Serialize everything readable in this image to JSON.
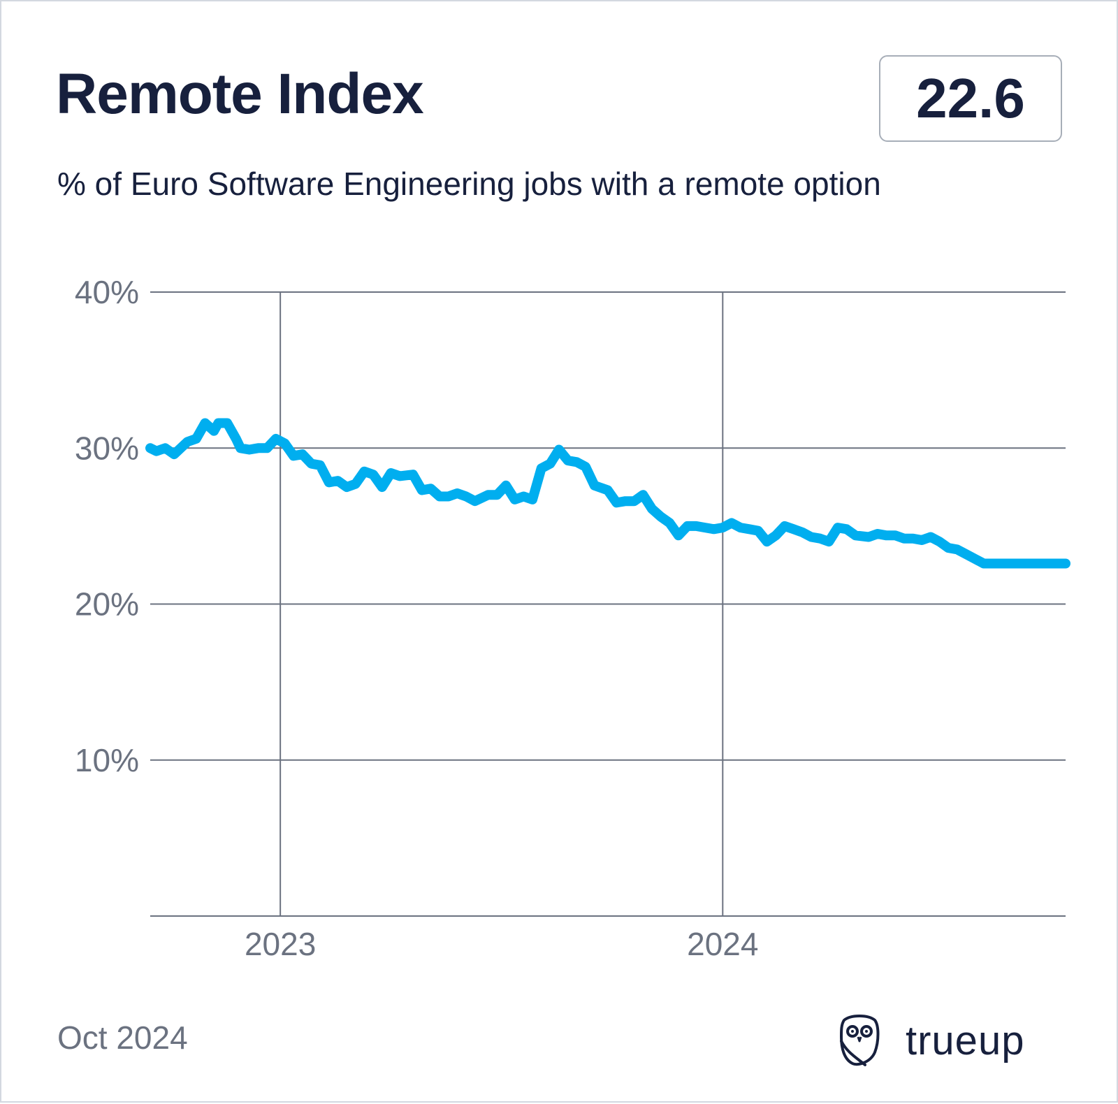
{
  "header": {
    "title": "Remote Index",
    "current_value": "22.6",
    "subtitle": "% of Euro Software Engineering jobs with a remote option"
  },
  "footer": {
    "date": "Oct 2024",
    "brand": "trueup",
    "brand_icon": "owl-icon"
  },
  "colors": {
    "line": "#00aeef",
    "grid": "#6b7280",
    "title": "#17203d",
    "muted": "#6b7280"
  },
  "chart_data": {
    "type": "line",
    "title": "Remote Index",
    "subtitle": "% of Euro Software Engineering jobs with a remote option",
    "xlabel": "",
    "ylabel": "",
    "x_unit": "decimal year",
    "xlim": [
      2022.706,
      2024.775
    ],
    "ylim": [
      0,
      40
    ],
    "y_ticks": [
      {
        "value": 10,
        "label": "10%"
      },
      {
        "value": 20,
        "label": "20%"
      },
      {
        "value": 30,
        "label": "30%"
      },
      {
        "value": 40,
        "label": "40%"
      }
    ],
    "x_ticks": [
      {
        "value": 2023.0,
        "label": "2023"
      },
      {
        "value": 2024.0,
        "label": "2024"
      }
    ],
    "grid": true,
    "legend": "none",
    "series": [
      {
        "name": "Remote Index",
        "x": [
          2022.706,
          2022.72,
          2022.74,
          2022.76,
          2022.79,
          2022.81,
          2022.83,
          2022.85,
          2022.86,
          2022.88,
          2022.9,
          2022.91,
          2022.93,
          2022.95,
          2022.97,
          2022.99,
          2023.01,
          2023.03,
          2023.05,
          2023.07,
          2023.09,
          2023.11,
          2023.13,
          2023.15,
          2023.17,
          2023.19,
          2023.21,
          2023.23,
          2023.25,
          2023.27,
          2023.3,
          2023.32,
          2023.34,
          2023.36,
          2023.38,
          2023.4,
          2023.42,
          2023.44,
          2023.47,
          2023.49,
          2023.51,
          2023.53,
          2023.55,
          2023.57,
          2023.59,
          2023.61,
          2023.63,
          2023.65,
          2023.67,
          2023.69,
          2023.71,
          2023.74,
          2023.76,
          2023.78,
          2023.8,
          2023.82,
          2023.84,
          2023.86,
          2023.88,
          2023.9,
          2023.92,
          2023.94,
          2023.96,
          2023.98,
          2024.0,
          2024.02,
          2024.04,
          2024.06,
          2024.08,
          2024.1,
          2024.12,
          2024.14,
          2024.16,
          2024.18,
          2024.2,
          2024.22,
          2024.24,
          2024.26,
          2024.28,
          2024.3,
          2024.33,
          2024.35,
          2024.37,
          2024.39,
          2024.41,
          2024.43,
          2024.45,
          2024.47,
          2024.49,
          2024.51,
          2024.53,
          2024.55,
          2024.57,
          2024.59,
          2024.61,
          2024.63,
          2024.65,
          2024.67,
          2024.7,
          2024.72,
          2024.74,
          2024.775
        ],
        "values": [
          30.0,
          29.8,
          30.0,
          29.6,
          30.4,
          30.6,
          31.6,
          31.1,
          31.6,
          31.6,
          30.6,
          30.0,
          29.9,
          30.0,
          30.0,
          30.6,
          30.3,
          29.5,
          29.6,
          29.0,
          28.9,
          27.8,
          27.9,
          27.5,
          27.7,
          28.5,
          28.3,
          27.5,
          28.4,
          28.2,
          28.3,
          27.3,
          27.4,
          26.9,
          26.9,
          27.1,
          26.9,
          26.6,
          27.0,
          27.0,
          27.6,
          26.7,
          26.9,
          26.7,
          28.7,
          29.0,
          29.9,
          29.2,
          29.1,
          28.8,
          27.6,
          27.3,
          26.5,
          26.6,
          26.6,
          27.0,
          26.1,
          25.6,
          25.2,
          24.4,
          25.0,
          25.0,
          24.9,
          24.8,
          24.9,
          25.2,
          24.9,
          24.8,
          24.7,
          24.0,
          24.4,
          25.0,
          24.8,
          24.6,
          24.3,
          24.2,
          24.0,
          24.9,
          24.8,
          24.4,
          24.3,
          24.5,
          24.4,
          24.4,
          24.2,
          24.2,
          24.1,
          24.3,
          24.0,
          23.6,
          23.5,
          23.2,
          22.9,
          22.6,
          22.6,
          22.6,
          22.6,
          22.6,
          22.6,
          22.6,
          22.6,
          22.6
        ]
      }
    ]
  }
}
